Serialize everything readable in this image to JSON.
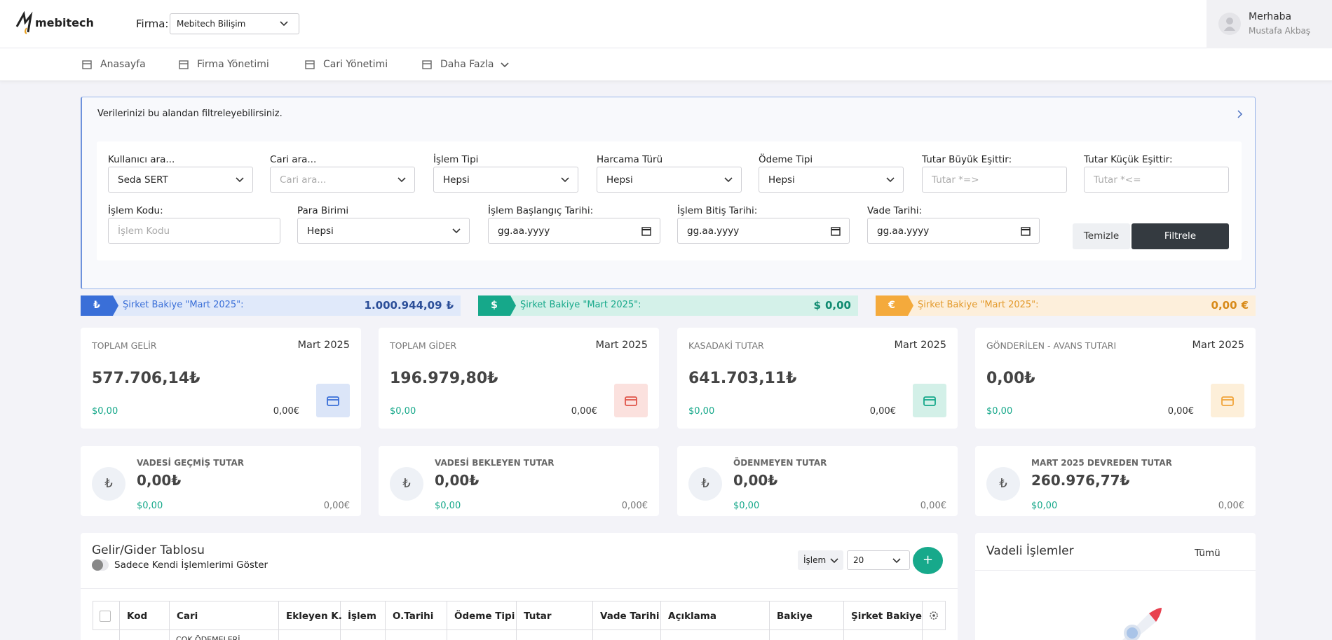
{
  "header": {
    "logo": "mebitech",
    "firma_label": "Firma:",
    "firma_value": "Mebitech Bilişim",
    "greeting": "Merhaba",
    "user": "Mustafa Akbaş"
  },
  "nav": [
    "Anasayfa",
    "Firma Yönetimi",
    "Cari Yönetimi",
    "Daha Fazla"
  ],
  "filter": {
    "title": "Verilerinizi bu alandan filtreleyebilirsiniz.",
    "row1": [
      {
        "label": "Kullanıcı ara...",
        "value": "Seda SERT"
      },
      {
        "label": "Cari ara...",
        "placeholder": "Cari ara..."
      },
      {
        "label": "İşlem Tipi",
        "value": "Hepsi"
      },
      {
        "label": "Harcama Türü",
        "value": "Hepsi"
      },
      {
        "label": "Ödeme Tipi",
        "value": "Hepsi"
      },
      {
        "label": "Tutar Büyük Eşittir:",
        "placeholder": "Tutar *=>"
      },
      {
        "label": "Tutar Küçük Eşittir:",
        "placeholder": "Tutar *<="
      }
    ],
    "row2": [
      {
        "label": "İşlem Kodu:",
        "placeholder": "İşlem Kodu"
      },
      {
        "label": "Para Birimi",
        "value": "Hepsi"
      },
      {
        "label": "İşlem Başlangıç Tarihi:",
        "date": "gg.aa.yyyy"
      },
      {
        "label": "İşlem Bitiş Tarihi:",
        "date": "gg.aa.yyyy"
      },
      {
        "label": "Vade Tarihi:",
        "date": "gg.aa.yyyy"
      }
    ],
    "clear": "Temizle",
    "apply": "Filtrele"
  },
  "balances": [
    {
      "symbol": "₺",
      "label": "Şirket Bakiye \"Mart 2025\":",
      "amount": "1.000.944,09",
      "currency": "₺"
    },
    {
      "symbol": "$",
      "label": "Şirket Bakiye \"Mart 2025\":",
      "currency": "$",
      "amount": "0,00"
    },
    {
      "symbol": "€",
      "label": "Şirket Bakiye \"Mart 2025\":",
      "amount": "0,00",
      "currency": "€"
    }
  ],
  "summary": [
    {
      "label": "TOPLAM GELİR",
      "period": "Mart 2025",
      "amount": "577.706,14₺",
      "usd": "$0,00",
      "eur": "0,00€"
    },
    {
      "label": "TOPLAM GİDER",
      "period": "Mart 2025",
      "amount": "196.979,80₺",
      "usd": "$0,00",
      "eur": "0,00€"
    },
    {
      "label": "KASADAKİ TUTAR",
      "period": "Mart 2025",
      "amount": "641.703,11₺",
      "usd": "$0,00",
      "eur": "0,00€"
    },
    {
      "label": "GÖNDERİLEN - AVANS TUTARI",
      "period": "Mart 2025",
      "amount": "0,00₺",
      "usd": "$0,00",
      "eur": "0,00€"
    }
  ],
  "due": [
    {
      "symbol": "₺",
      "label": "VADESİ GEÇMİŞ TUTAR",
      "amount": "0,00₺",
      "usd": "$0,00",
      "eur": "0,00€"
    },
    {
      "symbol": "₺",
      "label": "VADESİ BEKLEYEN TUTAR",
      "amount": "0,00₺",
      "usd": "$0,00",
      "eur": "0,00€"
    },
    {
      "symbol": "₺",
      "label": "ÖDENMEYEN TUTAR",
      "amount": "0,00₺",
      "usd": "$0,00",
      "eur": "0,00€"
    },
    {
      "symbol": "₺",
      "label": "MART 2025 DEVREDEN TUTAR",
      "amount": "260.976,77₺",
      "usd": "$0,00",
      "eur": "0,00€"
    }
  ],
  "table": {
    "title": "Gelir/Gider Tablosu",
    "toggle": "Sadece Kendi İşlemlerimi Göster",
    "type_select": "İşlem",
    "page_size": "20",
    "add": "+",
    "columns": [
      "Kod",
      "Cari",
      "Ekleyen K.",
      "İşlem",
      "O.Tarihi",
      "Ödeme Tipi",
      "Tutar",
      "Vade Tarihi",
      "Açıklama",
      "Bakiye",
      "Şirket Bakiye"
    ],
    "first_row_cari": "ÇOK ÖDEMELERİ"
  },
  "side": {
    "title": "Vadeli İşlemler",
    "link": "Tümü"
  }
}
